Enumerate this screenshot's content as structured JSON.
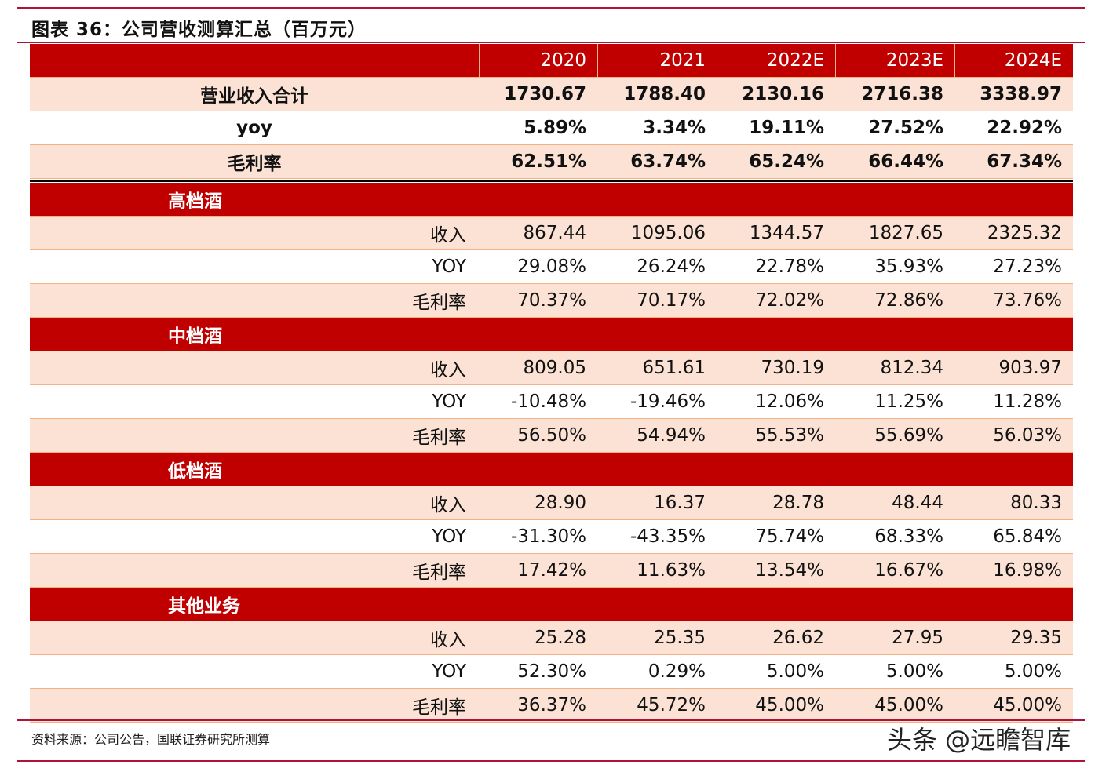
{
  "title": "图表 36：公司营收测算汇总（百万元）",
  "columns": [
    "2020",
    "2021",
    "2022E",
    "2023E",
    "2024E"
  ],
  "summary": [
    {
      "label": "营业收入合计",
      "values": [
        "1730.67",
        "1788.40",
        "2130.16",
        "2716.38",
        "3338.97"
      ]
    },
    {
      "label": "yoy",
      "values": [
        "5.89%",
        "3.34%",
        "19.11%",
        "27.52%",
        "22.92%"
      ]
    },
    {
      "label": "毛利率",
      "values": [
        "62.51%",
        "63.74%",
        "65.24%",
        "66.44%",
        "67.34%"
      ]
    }
  ],
  "sections": [
    {
      "name": "高档酒",
      "rows": [
        {
          "label": "收入",
          "values": [
            "867.44",
            "1095.06",
            "1344.57",
            "1827.65",
            "2325.32"
          ]
        },
        {
          "label": "YOY",
          "values": [
            "29.08%",
            "26.24%",
            "22.78%",
            "35.93%",
            "27.23%"
          ]
        },
        {
          "label": "毛利率",
          "values": [
            "70.37%",
            "70.17%",
            "72.02%",
            "72.86%",
            "73.76%"
          ]
        }
      ]
    },
    {
      "name": "中档酒",
      "rows": [
        {
          "label": "收入",
          "values": [
            "809.05",
            "651.61",
            "730.19",
            "812.34",
            "903.97"
          ]
        },
        {
          "label": "YOY",
          "values": [
            "-10.48%",
            "-19.46%",
            "12.06%",
            "11.25%",
            "11.28%"
          ]
        },
        {
          "label": "毛利率",
          "values": [
            "56.50%",
            "54.94%",
            "55.53%",
            "55.69%",
            "56.03%"
          ]
        }
      ]
    },
    {
      "name": "低档酒",
      "rows": [
        {
          "label": "收入",
          "values": [
            "28.90",
            "16.37",
            "28.78",
            "48.44",
            "80.33"
          ]
        },
        {
          "label": "YOY",
          "values": [
            "-31.30%",
            "-43.35%",
            "75.74%",
            "68.33%",
            "65.84%"
          ]
        },
        {
          "label": "毛利率",
          "values": [
            "17.42%",
            "11.63%",
            "13.54%",
            "16.67%",
            "16.98%"
          ]
        }
      ]
    },
    {
      "name": "其他业务",
      "rows": [
        {
          "label": "收入",
          "values": [
            "25.28",
            "25.35",
            "26.62",
            "27.95",
            "29.35"
          ]
        },
        {
          "label": "YOY",
          "values": [
            "52.30%",
            "0.29%",
            "5.00%",
            "5.00%",
            "5.00%"
          ]
        },
        {
          "label": "毛利率",
          "values": [
            "36.37%",
            "45.72%",
            "45.00%",
            "45.00%",
            "45.00%"
          ]
        }
      ]
    }
  ],
  "source": "资料来源：公司公告，国联证券研究所测算",
  "watermark": "头条 @远瞻智库"
}
